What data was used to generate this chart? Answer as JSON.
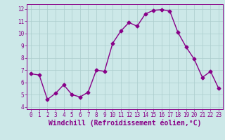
{
  "x": [
    0,
    1,
    2,
    3,
    4,
    5,
    6,
    7,
    8,
    9,
    10,
    11,
    12,
    13,
    14,
    15,
    16,
    17,
    18,
    19,
    20,
    21,
    22,
    23
  ],
  "y": [
    6.7,
    6.6,
    4.6,
    5.1,
    5.8,
    5.0,
    4.8,
    5.2,
    7.0,
    6.9,
    9.2,
    10.2,
    10.9,
    10.6,
    11.6,
    11.9,
    11.95,
    11.85,
    10.1,
    8.9,
    7.9,
    6.4,
    6.9,
    5.5
  ],
  "line_color": "#880088",
  "marker": "D",
  "marker_size": 2.5,
  "bg_color": "#cce8e8",
  "grid_color": "#aacccc",
  "xlabel": "Windchill (Refroidissement éolien,°C)",
  "xlabel_color": "#880088",
  "tick_color": "#880088",
  "spine_color": "#880088",
  "ylim": [
    3.8,
    12.4
  ],
  "xlim": [
    -0.5,
    23.5
  ],
  "yticks": [
    4,
    5,
    6,
    7,
    8,
    9,
    10,
    11,
    12
  ],
  "xticks": [
    0,
    1,
    2,
    3,
    4,
    5,
    6,
    7,
    8,
    9,
    10,
    11,
    12,
    13,
    14,
    15,
    16,
    17,
    18,
    19,
    20,
    21,
    22,
    23
  ],
  "tick_fontsize": 5.5,
  "xlabel_fontsize": 7,
  "linewidth": 1.0
}
